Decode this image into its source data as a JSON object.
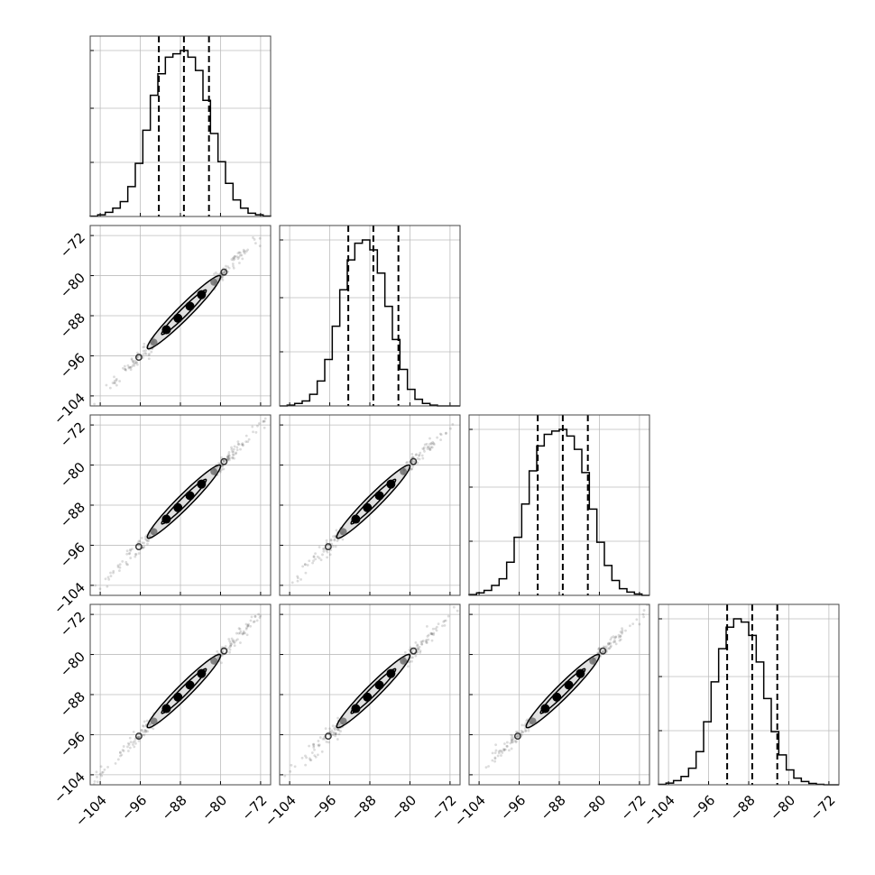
{
  "chart_data": {
    "type": "scatter",
    "subtype": "corner-plot",
    "n_params": 4,
    "axis_range": [
      -106,
      -70
    ],
    "ticks": [
      -104,
      -96,
      -88,
      -80,
      -72
    ],
    "tick_labels": [
      "−104",
      "−96",
      "−88",
      "−80",
      "−72"
    ],
    "grid": true,
    "quantiles": [
      -92.3,
      -87.3,
      -82.3
    ],
    "marginal_histograms": [
      {
        "param": 0,
        "bin_edges": [
          -106,
          -104.5,
          -103,
          -101.5,
          -100,
          -98.5,
          -97,
          -95.5,
          -94,
          -92.5,
          -91,
          -89.5,
          -88,
          -86.5,
          -85,
          -83.5,
          -82,
          -80.5,
          -79,
          -77.5,
          -76,
          -74.5,
          -73,
          -71.5,
          -70
        ],
        "counts": [
          0.2,
          1,
          2.5,
          5,
          9,
          18,
          32,
          52,
          73,
          86,
          96,
          98,
          100,
          96,
          88,
          70,
          50,
          33,
          20,
          10,
          5,
          2,
          1,
          0.3
        ]
      },
      {
        "param": 1,
        "bin_edges": [
          -106,
          -104.5,
          -103,
          -101.5,
          -100,
          -98.5,
          -97,
          -95.5,
          -94,
          -92.5,
          -91,
          -89.5,
          -88,
          -86.5,
          -85,
          -83.5,
          -82,
          -80.5,
          -79,
          -77.5,
          -76,
          -74.5,
          -73,
          -71.5,
          -70
        ],
        "counts": [
          0,
          0.5,
          1.5,
          3,
          7,
          15,
          28,
          48,
          70,
          88,
          98,
          100,
          94,
          80,
          60,
          40,
          22,
          10,
          4,
          1.5,
          0.5,
          0,
          0,
          0
        ]
      },
      {
        "param": 2,
        "bin_edges": [
          -106,
          -104.5,
          -103,
          -101.5,
          -100,
          -98.5,
          -97,
          -95.5,
          -94,
          -92.5,
          -91,
          -89.5,
          -88,
          -86.5,
          -85,
          -83.5,
          -82,
          -80.5,
          -79,
          -77.5,
          -76,
          -74.5,
          -73,
          -71.5,
          -70
        ],
        "counts": [
          0.5,
          1.5,
          3,
          6,
          10,
          20,
          35,
          55,
          75,
          90,
          97,
          99,
          100,
          96,
          88,
          74,
          52,
          32,
          18,
          9,
          4,
          2,
          0.8,
          0
        ]
      },
      {
        "param": 3,
        "bin_edges": [
          -106,
          -104.5,
          -103,
          -101.5,
          -100,
          -98.5,
          -97,
          -95.5,
          -94,
          -92.5,
          -91,
          -89.5,
          -88,
          -86.5,
          -85,
          -83.5,
          -82,
          -80.5,
          -79,
          -77.5,
          -76,
          -74.5,
          -73,
          -71.5,
          -70
        ],
        "counts": [
          0.3,
          1,
          2.5,
          5,
          10,
          20,
          38,
          62,
          82,
          95,
          100,
          98,
          90,
          74,
          52,
          32,
          18,
          9,
          4,
          2,
          0.8,
          0.3,
          0,
          0
        ]
      }
    ],
    "pair_panels": [
      {
        "row": 1,
        "col": 0,
        "center": [
          -87.3,
          -87.3
        ],
        "spread": 5.0,
        "rho": 0.99
      },
      {
        "row": 2,
        "col": 0,
        "center": [
          -87.3,
          -87.3
        ],
        "spread": 5.0,
        "rho": 0.99
      },
      {
        "row": 2,
        "col": 1,
        "center": [
          -87.3,
          -87.3
        ],
        "spread": 5.0,
        "rho": 0.99
      },
      {
        "row": 3,
        "col": 0,
        "center": [
          -87.3,
          -87.3
        ],
        "spread": 5.0,
        "rho": 0.99
      },
      {
        "row": 3,
        "col": 1,
        "center": [
          -87.3,
          -87.3
        ],
        "spread": 5.0,
        "rho": 0.985
      },
      {
        "row": 3,
        "col": 2,
        "center": [
          -87.3,
          -87.3
        ],
        "spread": 5.0,
        "rho": 0.99
      }
    ]
  }
}
